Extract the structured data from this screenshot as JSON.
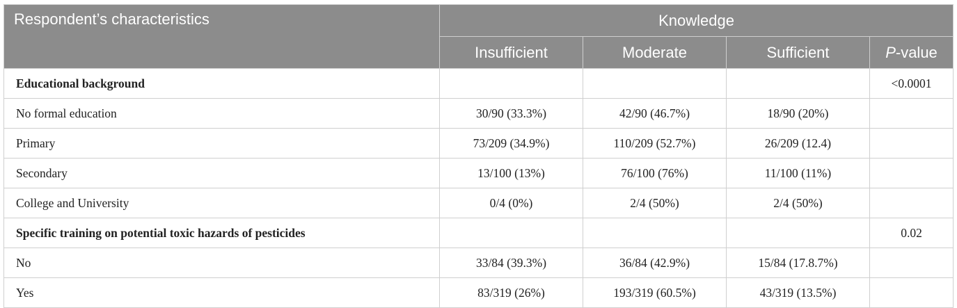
{
  "header": {
    "characteristics": "Respondent’s characteristics",
    "knowledge": "Knowledge",
    "insufficient": "Insufficient",
    "moderate": "Moderate",
    "sufficient": "Sufficient",
    "p_prefix": "P",
    "p_suffix": "-value"
  },
  "rows": [
    {
      "label": "Educational background",
      "insufficient": "",
      "moderate": "",
      "sufficient": "",
      "p": "<0.0001"
    },
    {
      "label": "No formal education",
      "insufficient": "30/90 (33.3%)",
      "moderate": "42/90 (46.7%)",
      "sufficient": "18/90 (20%)",
      "p": ""
    },
    {
      "label": "Primary",
      "insufficient": "73/209 (34.9%)",
      "moderate": "110/209 (52.7%)",
      "sufficient": "26/209 (12.4)",
      "p": ""
    },
    {
      "label": "Secondary",
      "insufficient": "13/100 (13%)",
      "moderate": "76/100 (76%)",
      "sufficient": "11/100 (11%)",
      "p": ""
    },
    {
      "label": "College and University",
      "insufficient": "0/4 (0%)",
      "moderate": "2/4 (50%)",
      "sufficient": "2/4 (50%)",
      "p": ""
    },
    {
      "label": "Specific training on potential toxic hazards of pesticides",
      "insufficient": "",
      "moderate": "",
      "sufficient": "",
      "p": "0.02"
    },
    {
      "label": "No",
      "insufficient": "33/84 (39.3%)",
      "moderate": "36/84 (42.9%)",
      "sufficient": "15/84 (17.8.7%)",
      "p": ""
    },
    {
      "label": "Yes",
      "insufficient": "83/319 (26%)",
      "moderate": "193/319 (60.5%)",
      "sufficient": "43/319 (13.5%)",
      "p": ""
    }
  ]
}
